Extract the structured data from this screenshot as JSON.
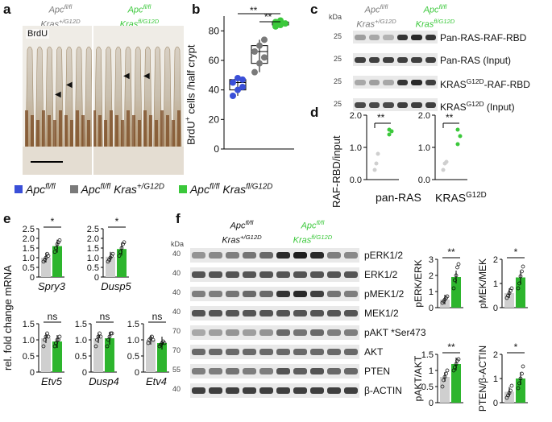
{
  "colors": {
    "wt": "#3a4fd8",
    "kras_g12d_het": "#7a7a7a",
    "kras_g12d_hom": "#3bc83b",
    "bar_gray": "#cfcfcf",
    "bar_green": "#2db52d"
  },
  "panel_a": {
    "letter": "a",
    "stain": "BrdU",
    "genotype_left_1": "Apc",
    "genotype_left_1_sup": "fl/fl",
    "genotype_left_2": "Kras",
    "genotype_left_2_sup": "+/G12D",
    "genotype_right_1": "Apc",
    "genotype_right_1_sup": "fl/fl",
    "genotype_right_2": "Kras",
    "genotype_right_2_sup": "fl/G12D"
  },
  "legend": {
    "items": [
      {
        "label": "Apc",
        "sup": "fl/fl",
        "label2": "",
        "sup2": ""
      },
      {
        "label": "Apc",
        "sup": "fl/fl",
        "label2": "Kras",
        "sup2": "+/G12D"
      },
      {
        "label": "Apc",
        "sup": "fl/fl",
        "label2": "Kras",
        "sup2": "fl/G12D"
      }
    ]
  },
  "panel_b": {
    "letter": "b",
    "ylabel": "BrdU",
    "ylabel_sup": "+",
    "ylabel_rest": " cells /half crypt",
    "sig1": "**",
    "sig2": "**"
  },
  "panel_c": {
    "letter": "c",
    "kda_label": "kDa",
    "genotype_left_1": "Apc",
    "genotype_left_1_sup": "fl/fl",
    "genotype_left_2": "Kras",
    "genotype_left_2_sup": "+/G12D",
    "genotype_right_1": "Apc",
    "genotype_right_1_sup": "fl/fl",
    "genotype_right_2": "Kras",
    "genotype_right_2_sup": "fl/G12D",
    "rows": [
      {
        "kda": "25",
        "label": "Pan-RAS-RAF-RBD",
        "label_sup": ""
      },
      {
        "kda": "25",
        "label": "Pan-RAS (Input)",
        "label_sup": ""
      },
      {
        "kda": "25",
        "label": "KRAS",
        "label_sup": "G12D",
        "label_rest": "-RAF-RBD"
      },
      {
        "kda": "25",
        "label": "KRAS",
        "label_sup": "G12D",
        "label_rest": " (Input)"
      }
    ]
  },
  "panel_d": {
    "letter": "d",
    "ylabel": "RAF-RBD/input",
    "sig1": "**",
    "sig2": "**",
    "xlabel1": "pan-RAS",
    "xlabel2": "KRAS",
    "xlabel2_sup": "G12D"
  },
  "panel_e": {
    "letter": "e",
    "ylabel": "rel. fold change mRNA",
    "top": [
      {
        "gene": "Spry3",
        "sig": "*"
      },
      {
        "gene": "Dusp5",
        "sig": "*"
      }
    ],
    "bottom": [
      {
        "gene": "Etv5",
        "sig": "ns"
      },
      {
        "gene": "Dusp4",
        "sig": "ns"
      },
      {
        "gene": "Etv4",
        "sig": "ns"
      }
    ]
  },
  "panel_f": {
    "letter": "f",
    "kda_label": "kDa",
    "genotype_left_1": "Apc",
    "genotype_left_1_sup": "fl/fl",
    "genotype_left_2": "Kras",
    "genotype_left_2_sup": "+/G12D",
    "genotype_right_1": "Apc",
    "genotype_right_1_sup": "fl/fl",
    "genotype_right_2": "Kras",
    "genotype_right_2_sup": "fl/G12D",
    "rows": [
      {
        "kda": "40",
        "label": "pERK1/2"
      },
      {
        "kda": "40",
        "label": "ERK1/2"
      },
      {
        "kda": "40",
        "label": "pMEK1/2"
      },
      {
        "kda": "40",
        "label": "MEK1/2"
      },
      {
        "kda": "70",
        "label": "pAKT *Ser473"
      },
      {
        "kda": "70",
        "label": "AKT"
      },
      {
        "kda": "55",
        "label": "PTEN"
      },
      {
        "kda": "40",
        "label": "β-ACTIN"
      }
    ],
    "quant": [
      {
        "ylabel": "pERK/ERK",
        "sig": "**"
      },
      {
        "ylabel": "pMEK/MEK",
        "sig": "*"
      },
      {
        "ylabel": "pAKT/AKT",
        "sig": "**"
      },
      {
        "ylabel": "PTEN/β-ACTIN",
        "sig": "*"
      }
    ]
  },
  "chart_data": [
    {
      "panel": "b",
      "type": "box",
      "ylim": [
        0,
        90
      ],
      "yticks": [
        0,
        20,
        40,
        60,
        80
      ],
      "series": [
        {
          "name": "Apc fl/fl",
          "values": [
            36,
            40,
            42,
            45,
            48,
            47
          ]
        },
        {
          "name": "Apc fl/fl Kras +/G12D",
          "values": [
            52,
            58,
            62,
            66,
            70,
            74
          ]
        },
        {
          "name": "Apc fl/fl Kras fl/G12D",
          "values": [
            83,
            84,
            85,
            86,
            87
          ]
        }
      ]
    },
    {
      "panel": "d",
      "type": "scatter",
      "ylim": [
        0,
        2
      ],
      "yticks": [
        0,
        1,
        2
      ],
      "groups": [
        {
          "name": "pan-RAS",
          "het": [
            0.3,
            0.5,
            0.8
          ],
          "hom": [
            1.4,
            1.5,
            1.55
          ]
        },
        {
          "name": "KRAS G12D",
          "het": [
            0.3,
            0.5,
            0.55
          ],
          "hom": [
            1.1,
            1.35,
            1.55
          ]
        }
      ]
    },
    {
      "panel": "e",
      "type": "bar",
      "ylim": [
        0,
        2.5
      ],
      "yticks": [
        0,
        0.5,
        1,
        1.5,
        2,
        2.5
      ],
      "genes": [
        {
          "gene": "Spry3",
          "het_mean": 1.0,
          "hom_mean": 1.6,
          "het": [
            0.8,
            0.9,
            1.0,
            1.2,
            1.1
          ],
          "hom": [
            1.3,
            1.5,
            1.7,
            1.8,
            1.9
          ]
        },
        {
          "gene": "Dusp5",
          "het_mean": 1.05,
          "hom_mean": 1.45,
          "het": [
            0.8,
            0.9,
            1.0,
            1.1,
            1.2
          ],
          "hom": [
            1.1,
            1.3,
            1.5,
            1.7,
            1.8
          ]
        }
      ]
    },
    {
      "panel": "e2",
      "type": "bar",
      "ylim": [
        0,
        1.5
      ],
      "yticks": [
        0,
        0.5,
        1.0,
        1.5
      ],
      "genes": [
        {
          "gene": "Etv5",
          "het_mean": 1.05,
          "hom_mean": 0.95,
          "het": [
            0.8,
            1.0,
            1.1,
            1.2,
            1.1
          ],
          "hom": [
            0.8,
            0.9,
            1.0,
            1.0,
            1.1
          ]
        },
        {
          "gene": "Dusp4",
          "het_mean": 1.05,
          "hom_mean": 1.05,
          "het": [
            0.8,
            1.0,
            1.1,
            1.2,
            1.1
          ],
          "hom": [
            0.8,
            1.0,
            1.1,
            1.2,
            1.2
          ]
        },
        {
          "gene": "Etv4",
          "het_mean": 1.0,
          "hom_mean": 0.9,
          "het": [
            0.9,
            1.0,
            1.05,
            1.1,
            1.0
          ],
          "hom": [
            0.8,
            0.85,
            0.9,
            0.95,
            0.9
          ]
        }
      ]
    },
    {
      "panel": "f",
      "type": "bar",
      "plots": [
        {
          "ylabel": "pERK/ERK",
          "ylim": [
            0,
            3
          ],
          "yticks": [
            0,
            1,
            2,
            3
          ],
          "het_mean": 0.5,
          "hom_mean": 1.9,
          "het": [
            0.3,
            0.4,
            0.5,
            0.6,
            0.7
          ],
          "hom": [
            1.2,
            1.7,
            2.0,
            2.5,
            2.7
          ]
        },
        {
          "ylabel": "pMEK/MEK",
          "ylim": [
            0,
            2
          ],
          "yticks": [
            0,
            1,
            2
          ],
          "het_mean": 0.6,
          "hom_mean": 1.25,
          "het": [
            0.4,
            0.5,
            0.6,
            0.7,
            0.8
          ],
          "hom": [
            0.8,
            1.0,
            1.3,
            1.5,
            1.7
          ]
        },
        {
          "ylabel": "pAKT/AKT",
          "ylim": [
            0,
            1.5
          ],
          "yticks": [
            0,
            0.5,
            1,
            1.5
          ],
          "het_mean": 0.8,
          "hom_mean": 1.2,
          "het": [
            0.5,
            0.7,
            0.8,
            0.9,
            1.0
          ],
          "hom": [
            1.0,
            1.1,
            1.2,
            1.3,
            1.35
          ]
        },
        {
          "ylabel": "PTEN/β-ACTIN",
          "ylim": [
            0,
            2
          ],
          "yticks": [
            0,
            1,
            2
          ],
          "het_mean": 0.45,
          "hom_mean": 1.0,
          "het": [
            0.2,
            0.3,
            0.4,
            0.5,
            0.7
          ],
          "hom": [
            0.6,
            0.8,
            1.0,
            1.2,
            1.5
          ]
        }
      ]
    }
  ]
}
